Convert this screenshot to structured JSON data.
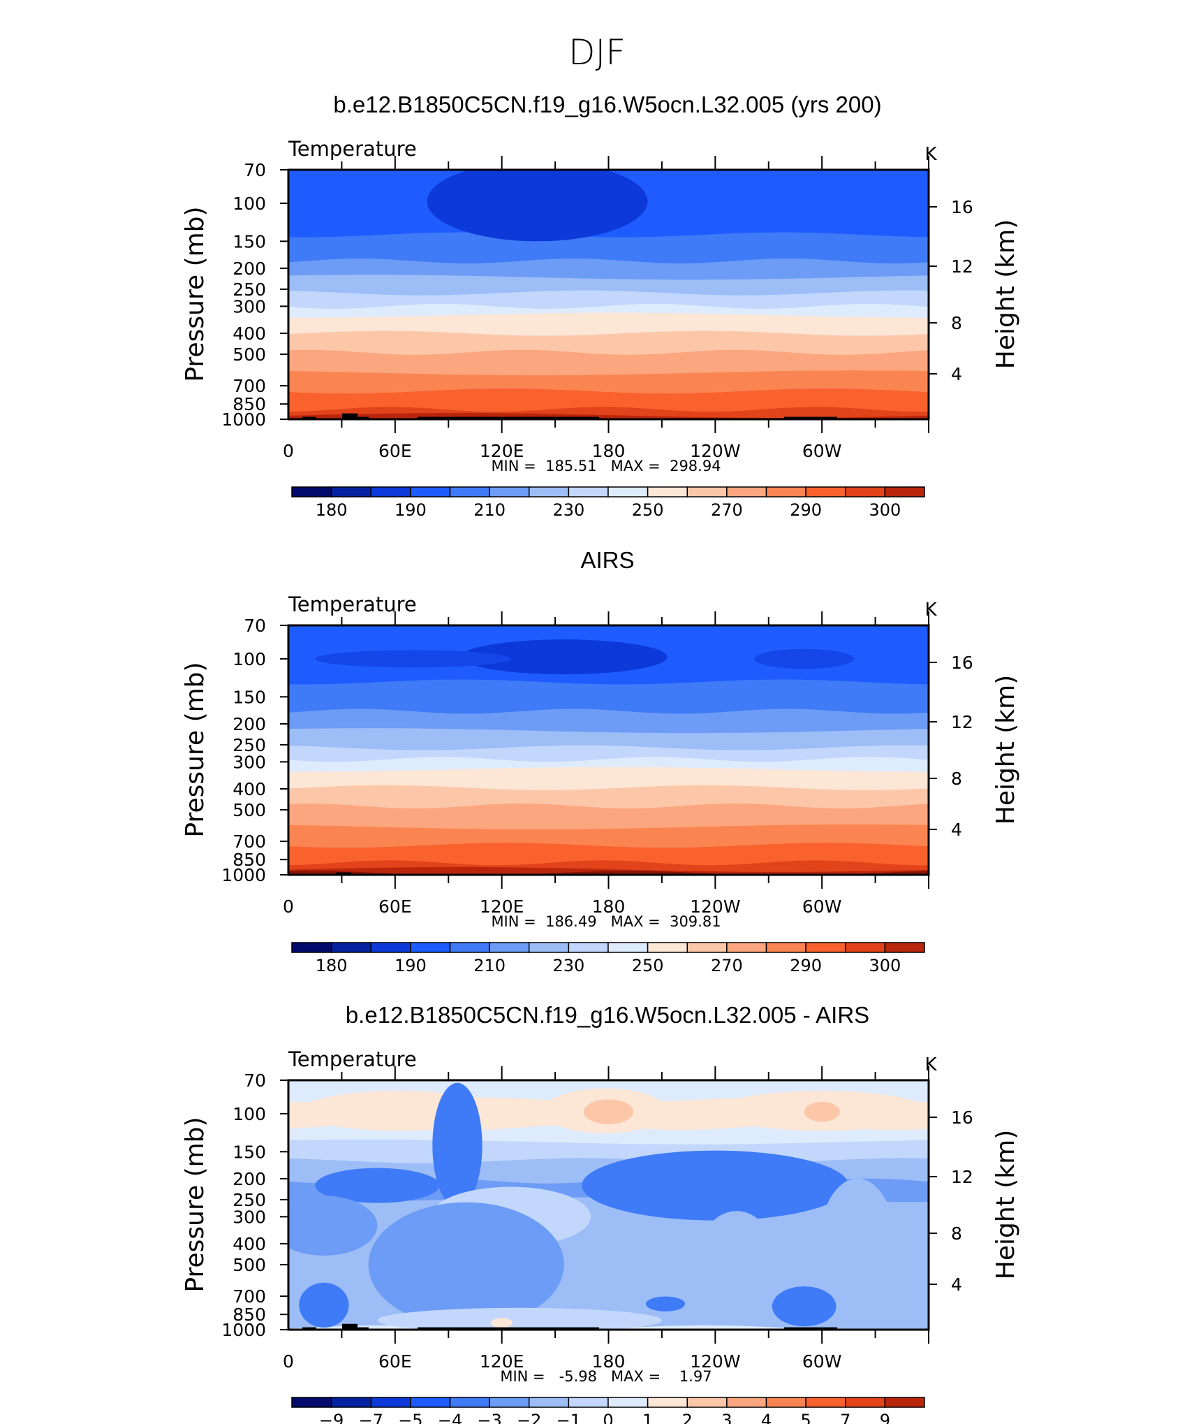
{
  "figure_title": "DJF",
  "chart_data": [
    {
      "type": "heatmap",
      "title": "b.e12.B1850C5CN.f19_g16.W5ocn.L32.005 (yrs 200)",
      "variable": "Temperature",
      "units": "K",
      "ylabel": "Pressure (mb)",
      "ylabel_right": "Height (km)",
      "xlabel": "",
      "xticks": [
        "0",
        "60E",
        "120E",
        "180",
        "120W",
        "60W"
      ],
      "pressure_ticks": [
        70,
        100,
        150,
        200,
        250,
        300,
        400,
        500,
        700,
        850,
        1000
      ],
      "height_ticks": [
        16,
        12,
        8,
        4
      ],
      "minmax": "MIN =  185.51   MAX =  298.94",
      "min": 185.51,
      "max": 298.94,
      "colorbar_labels": [
        "180",
        "190",
        "210",
        "230",
        "250",
        "270",
        "290",
        "300"
      ],
      "bands": [
        {
          "p": 70,
          "color": "#1f5cff"
        },
        {
          "p": 140,
          "color": "#3f7bf7"
        },
        {
          "p": 185,
          "color": "#6c9cf5"
        },
        {
          "p": 220,
          "color": "#9dbdf7"
        },
        {
          "p": 260,
          "color": "#c2d7fb"
        },
        {
          "p": 300,
          "color": "#deebfd"
        },
        {
          "p": 330,
          "color": "#fce6d6"
        },
        {
          "p": 400,
          "color": "#fcc7a9"
        },
        {
          "p": 490,
          "color": "#fba67e"
        },
        {
          "p": 610,
          "color": "#fb8552"
        },
        {
          "p": 740,
          "color": "#f9622c"
        },
        {
          "p": 900,
          "color": "#e2431a"
        },
        {
          "p": 960,
          "color": "#b9260c"
        }
      ],
      "blobs": [
        {
          "lon": 140,
          "p": 98,
          "dlon": 62,
          "dp": 0.16,
          "color": "#0c39d8"
        }
      ],
      "topography": "model"
    },
    {
      "type": "heatmap",
      "title": "AIRS",
      "variable": "Temperature",
      "units": "K",
      "ylabel": "Pressure (mb)",
      "ylabel_right": "Height (km)",
      "xlabel": "",
      "xticks": [
        "0",
        "60E",
        "120E",
        "180",
        "120W",
        "60W"
      ],
      "pressure_ticks": [
        70,
        100,
        150,
        200,
        250,
        300,
        400,
        500,
        700,
        850,
        1000
      ],
      "height_ticks": [
        16,
        12,
        8,
        4
      ],
      "minmax": "MIN =  186.49   MAX =  309.81",
      "min": 186.49,
      "max": 309.81,
      "colorbar_labels": [
        "180",
        "190",
        "210",
        "230",
        "250",
        "270",
        "290",
        "300"
      ],
      "bands": [
        {
          "p": 70,
          "color": "#1f5cff"
        },
        {
          "p": 128,
          "color": "#3f7bf7"
        },
        {
          "p": 175,
          "color": "#6c9cf5"
        },
        {
          "p": 215,
          "color": "#9dbdf7"
        },
        {
          "p": 258,
          "color": "#c2d7fb"
        },
        {
          "p": 292,
          "color": "#deebfd"
        },
        {
          "p": 325,
          "color": "#fce6d6"
        },
        {
          "p": 395,
          "color": "#fcc7a9"
        },
        {
          "p": 480,
          "color": "#fba67e"
        },
        {
          "p": 600,
          "color": "#fb8552"
        },
        {
          "p": 730,
          "color": "#f9622c"
        },
        {
          "p": 880,
          "color": "#e2431a"
        },
        {
          "p": 945,
          "color": "#b9260c"
        },
        {
          "p": 985,
          "color": "#8a1308"
        }
      ],
      "blobs": [
        {
          "lon": 155,
          "p": 98,
          "dlon": 58,
          "dp": 0.07,
          "color": "#0c39d8"
        },
        {
          "lon": 70,
          "p": 100,
          "dlon": 55,
          "dp": 0.035,
          "color": "#1546e8"
        },
        {
          "lon": 290,
          "p": 100,
          "dlon": 28,
          "dp": 0.04,
          "color": "#1546e8"
        }
      ],
      "topography": "obs"
    },
    {
      "type": "heatmap",
      "title": "b.e12.B1850C5CN.f19_g16.W5ocn.L32.005 - AIRS",
      "variable": "Temperature",
      "units": "K",
      "ylabel": "Pressure (mb)",
      "ylabel_right": "Height (km)",
      "xlabel": "",
      "xticks": [
        "0",
        "60E",
        "120E",
        "180",
        "120W",
        "60W"
      ],
      "pressure_ticks": [
        70,
        100,
        150,
        200,
        250,
        300,
        400,
        500,
        700,
        850,
        1000
      ],
      "height_ticks": [
        16,
        12,
        8,
        4
      ],
      "minmax": "MIN =   -5.98   MAX =    1.97",
      "min": -5.98,
      "max": 1.97,
      "colorbar_labels": [
        "−9",
        "−7",
        "−5",
        "−4",
        "−3",
        "−2",
        "−1",
        "0",
        "1",
        "2",
        "3",
        "4",
        "5",
        "7",
        "9"
      ],
      "bands": [
        {
          "p": 70,
          "color": "#deebfd"
        },
        {
          "p": 86,
          "color": "#fce6d6"
        },
        {
          "p": 116,
          "color": "#deebfd"
        },
        {
          "p": 135,
          "color": "#c2d7fb"
        },
        {
          "p": 165,
          "color": "#9dbdf7"
        },
        {
          "p": 205,
          "color": "#6c9cf5"
        },
        {
          "p": 250,
          "color": "#9dbdf7"
        },
        {
          "p": 980,
          "color": "#deebfd"
        }
      ],
      "blobs": [
        {
          "lon": 62,
          "p": 97,
          "dlon": 55,
          "dp": 0.08,
          "color": "#fce6d6"
        },
        {
          "lon": 178,
          "p": 97,
          "dlon": 35,
          "dp": 0.09,
          "color": "#fce6d6"
        },
        {
          "lon": 180,
          "p": 98,
          "dlon": 14,
          "dp": 0.05,
          "color": "#fcc7a9"
        },
        {
          "lon": 300,
          "p": 97,
          "dlon": 60,
          "dp": 0.08,
          "color": "#fce6d6"
        },
        {
          "lon": 300,
          "p": 98,
          "dlon": 10,
          "dp": 0.04,
          "color": "#fcc7a9"
        },
        {
          "lon": 95,
          "p": 140,
          "dlon": 14,
          "dp": 0.25,
          "color": "#3f7bf7"
        },
        {
          "lon": 240,
          "p": 215,
          "dlon": 75,
          "dp": 0.14,
          "color": "#3f7bf7"
        },
        {
          "lon": 50,
          "p": 215,
          "dlon": 35,
          "dp": 0.07,
          "color": "#3f7bf7"
        },
        {
          "lon": 125,
          "p": 300,
          "dlon": 45,
          "dp": 0.12,
          "color": "#c2d7fb"
        },
        {
          "lon": 320,
          "p": 420,
          "dlon": 22,
          "dp": 0.28,
          "color": "#9dbdf7"
        },
        {
          "lon": 20,
          "p": 330,
          "dlon": 30,
          "dp": 0.12,
          "color": "#6c9cf5"
        },
        {
          "lon": 100,
          "p": 500,
          "dlon": 55,
          "dp": 0.25,
          "color": "#6c9cf5"
        },
        {
          "lon": 252,
          "p": 480,
          "dlon": 22,
          "dp": 0.2,
          "color": "#9dbdf7"
        },
        {
          "lon": 20,
          "p": 770,
          "dlon": 14,
          "dp": 0.09,
          "color": "#3f7bf7"
        },
        {
          "lon": 212,
          "p": 760,
          "dlon": 11,
          "dp": 0.03,
          "color": "#3f7bf7"
        },
        {
          "lon": 290,
          "p": 780,
          "dlon": 18,
          "dp": 0.08,
          "color": "#3f7bf7"
        },
        {
          "lon": 130,
          "p": 905,
          "dlon": 80,
          "dp": 0.05,
          "color": "#c2d7fb"
        },
        {
          "lon": 120,
          "p": 930,
          "dlon": 6,
          "dp": 0.02,
          "color": "#fce6d6"
        }
      ],
      "topography": "model"
    }
  ],
  "colorbar_colors": [
    "#020a6b",
    "#0422a0",
    "#0c39d8",
    "#1f5cff",
    "#3f7bf7",
    "#6c9cf5",
    "#9dbdf7",
    "#c2d7fb",
    "#deebfd",
    "#fce6d6",
    "#fcc7a9",
    "#fba67e",
    "#fb8552",
    "#f9622c",
    "#e2431a",
    "#b9260c",
    "#8a0f08",
    "#6e0000"
  ]
}
